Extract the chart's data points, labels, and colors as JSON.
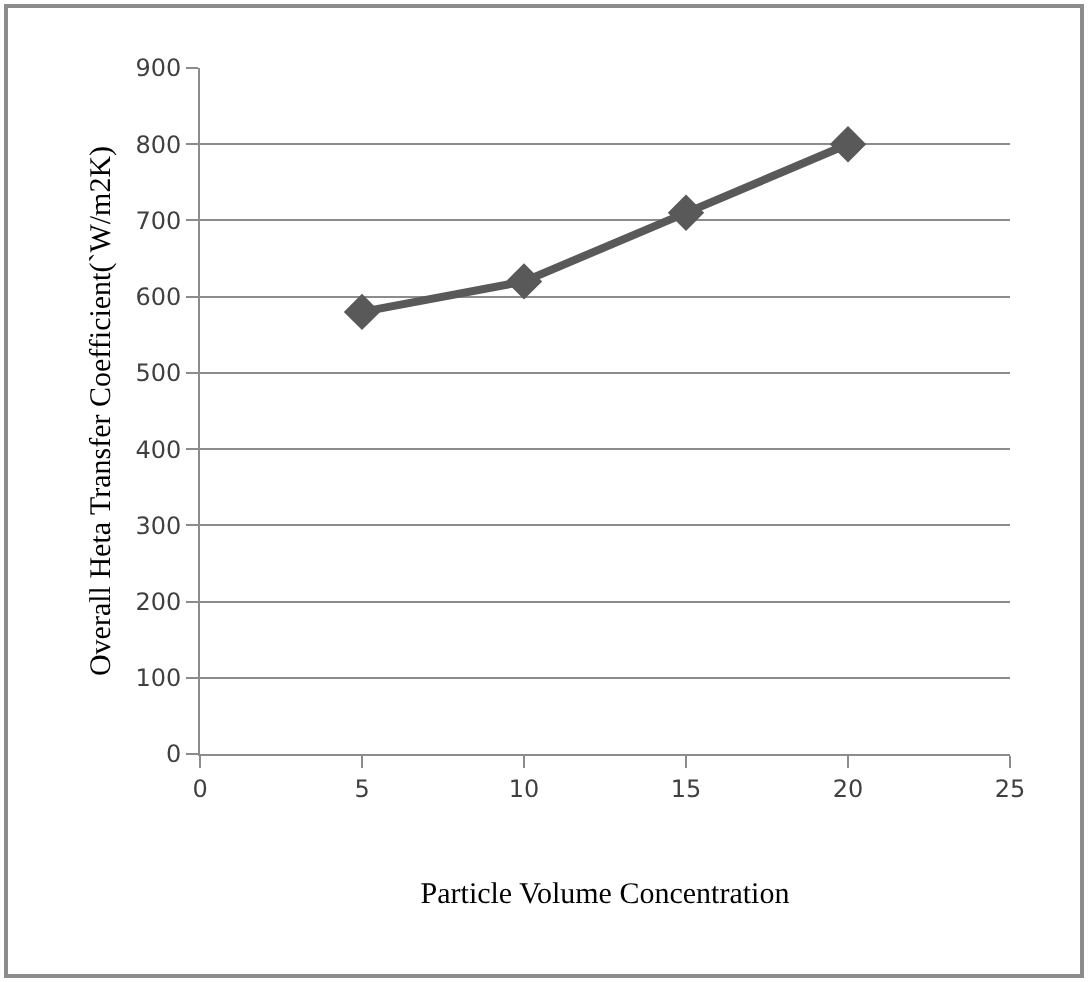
{
  "chart_data": {
    "type": "line",
    "xlabel": "Particle Volume Concentration",
    "ylabel": "Overall Heta Transfer Coefficient(`W/m2K)",
    "x": [
      5,
      10,
      15,
      20
    ],
    "series": [
      {
        "color": "#595959",
        "values": [
          580,
          620,
          710,
          800
        ]
      }
    ],
    "xlim": [
      0,
      25
    ],
    "xticks": [
      0,
      5,
      10,
      15,
      20,
      25
    ],
    "ylim": [
      0,
      900
    ],
    "yticks": [
      0,
      100,
      200,
      300,
      400,
      500,
      600,
      700,
      800,
      900
    ],
    "grid": "y",
    "marker": "diamond",
    "line_style": "solid"
  }
}
